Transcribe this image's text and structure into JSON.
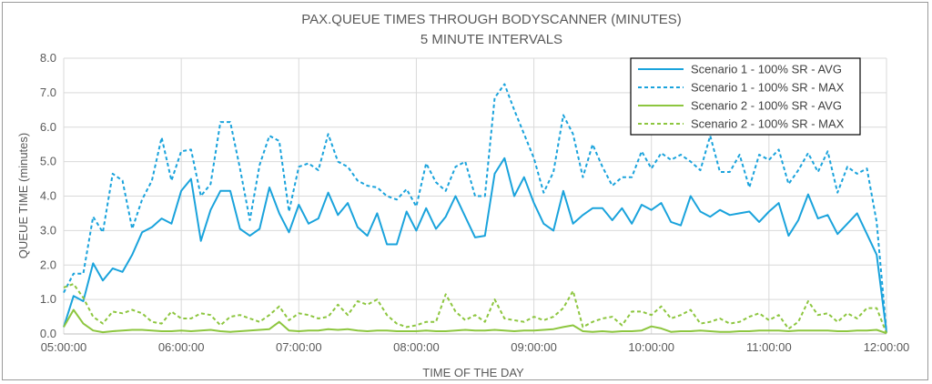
{
  "chart_data": {
    "type": "line",
    "title": "PAX.QUEUE TIMES THROUGH BODYSCANNER (MINUTES)",
    "subtitle": "5 MINUTE INTERVALS",
    "xlabel": "TIME OF THE DAY",
    "ylabel": "QUEUE TIME (minutes)",
    "ylim": [
      0,
      8
    ],
    "yticks": [
      "0.0",
      "1.0",
      "2.0",
      "3.0",
      "4.0",
      "5.0",
      "6.0",
      "7.0",
      "8.0"
    ],
    "xticks": [
      "05:00:00",
      "06:00:00",
      "07:00:00",
      "08:00:00",
      "09:00:00",
      "10:00:00",
      "11:00:00",
      "12:00:00"
    ],
    "x_start_minutes": 300,
    "x_end_minutes": 720,
    "interval_minutes": 5,
    "grid": true,
    "legend_position": "top-right",
    "series": [
      {
        "name": "Scenario 1 - 100% SR - AVG",
        "color": "#1aa3dc",
        "dash": "solid",
        "values": [
          0.2,
          1.1,
          0.95,
          2.05,
          1.55,
          1.9,
          1.8,
          2.3,
          2.95,
          3.1,
          3.35,
          3.2,
          4.15,
          4.5,
          2.7,
          3.6,
          4.15,
          4.15,
          3.05,
          2.85,
          3.05,
          4.25,
          3.5,
          2.95,
          3.75,
          3.2,
          3.35,
          4.1,
          3.45,
          3.8,
          3.1,
          2.85,
          3.5,
          2.6,
          2.6,
          3.55,
          3.0,
          3.65,
          3.05,
          3.4,
          4.0,
          3.4,
          2.8,
          2.85,
          4.65,
          5.1,
          4.0,
          4.55,
          3.8,
          3.2,
          3.0,
          4.15,
          3.2,
          3.45,
          3.65,
          3.65,
          3.3,
          3.65,
          3.2,
          3.75,
          3.6,
          3.8,
          3.25,
          3.15,
          4.0,
          3.55,
          3.4,
          3.6,
          3.45,
          3.5,
          3.55,
          3.25,
          3.55,
          3.8,
          2.85,
          3.3,
          4.05,
          3.35,
          3.45,
          2.9,
          3.2,
          3.5,
          2.9,
          2.3,
          0.05
        ]
      },
      {
        "name": "Scenario 1 - 100% SR - MAX",
        "color": "#1aa3dc",
        "dash": "dashed",
        "values": [
          1.2,
          1.75,
          1.75,
          3.4,
          2.95,
          4.65,
          4.45,
          3.05,
          3.9,
          4.45,
          5.7,
          4.45,
          5.3,
          5.35,
          4.0,
          4.35,
          6.15,
          6.15,
          4.8,
          3.3,
          4.9,
          5.75,
          5.6,
          3.55,
          4.85,
          4.95,
          4.75,
          5.8,
          5.0,
          4.85,
          4.45,
          4.3,
          4.25,
          4.0,
          3.9,
          4.2,
          3.7,
          4.95,
          4.4,
          4.15,
          4.85,
          5.0,
          4.0,
          4.0,
          6.85,
          7.25,
          6.5,
          5.8,
          5.1,
          4.1,
          4.7,
          6.35,
          5.8,
          4.55,
          5.5,
          4.85,
          4.3,
          4.55,
          4.55,
          5.3,
          4.8,
          5.25,
          5.05,
          5.2,
          5.0,
          4.75,
          5.75,
          4.7,
          4.7,
          5.2,
          4.25,
          5.2,
          5.05,
          5.35,
          4.35,
          4.75,
          5.25,
          4.7,
          5.3,
          4.1,
          4.85,
          4.65,
          4.8,
          3.25,
          0.05
        ]
      },
      {
        "name": "Scenario 2 - 100% SR - AVG",
        "color": "#8dc63f",
        "dash": "solid",
        "values": [
          0.2,
          0.7,
          0.3,
          0.1,
          0.05,
          0.08,
          0.1,
          0.12,
          0.12,
          0.1,
          0.08,
          0.08,
          0.1,
          0.08,
          0.1,
          0.12,
          0.08,
          0.06,
          0.08,
          0.1,
          0.12,
          0.14,
          0.35,
          0.1,
          0.08,
          0.1,
          0.1,
          0.14,
          0.12,
          0.14,
          0.1,
          0.08,
          0.1,
          0.1,
          0.08,
          0.08,
          0.08,
          0.1,
          0.08,
          0.08,
          0.1,
          0.12,
          0.1,
          0.1,
          0.12,
          0.1,
          0.08,
          0.1,
          0.1,
          0.12,
          0.14,
          0.2,
          0.25,
          0.08,
          0.06,
          0.08,
          0.06,
          0.08,
          0.08,
          0.1,
          0.22,
          0.16,
          0.06,
          0.08,
          0.08,
          0.1,
          0.08,
          0.06,
          0.06,
          0.08,
          0.08,
          0.1,
          0.1,
          0.1,
          0.08,
          0.1,
          0.1,
          0.1,
          0.1,
          0.08,
          0.08,
          0.1,
          0.1,
          0.12,
          0.02
        ]
      },
      {
        "name": "Scenario 2 - 100% SR - MAX",
        "color": "#8dc63f",
        "dash": "dashed",
        "values": [
          1.35,
          1.45,
          1.05,
          0.5,
          0.3,
          0.65,
          0.6,
          0.7,
          0.6,
          0.35,
          0.3,
          0.65,
          0.45,
          0.45,
          0.6,
          0.55,
          0.25,
          0.5,
          0.55,
          0.45,
          0.35,
          0.55,
          0.8,
          0.4,
          0.6,
          0.55,
          0.45,
          0.5,
          0.85,
          0.55,
          0.95,
          0.85,
          1.0,
          0.55,
          0.3,
          0.2,
          0.25,
          0.35,
          0.35,
          1.15,
          0.65,
          0.4,
          0.55,
          0.35,
          1.0,
          0.45,
          0.4,
          0.35,
          0.5,
          0.4,
          0.5,
          0.75,
          1.25,
          0.2,
          0.35,
          0.45,
          0.5,
          0.25,
          0.65,
          0.65,
          0.55,
          0.8,
          0.45,
          0.55,
          0.7,
          0.3,
          0.35,
          0.45,
          0.3,
          0.35,
          0.5,
          0.6,
          0.4,
          0.55,
          0.15,
          0.35,
          0.95,
          0.55,
          0.6,
          0.35,
          0.6,
          0.45,
          0.75,
          0.75,
          0.02
        ]
      }
    ]
  }
}
